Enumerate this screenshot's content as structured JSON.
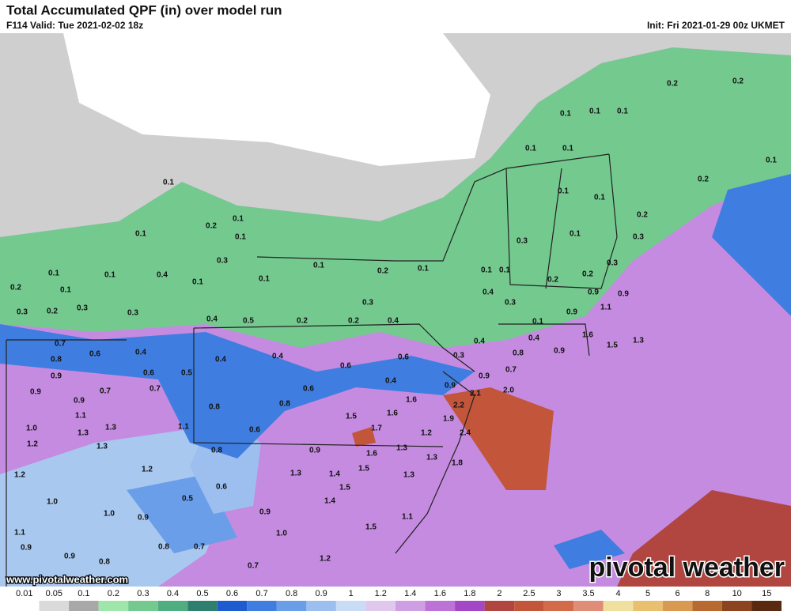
{
  "header": {
    "title": "Total Accumulated QPF (in) over model run",
    "valid": "F114 Valid: Tue 2021-02-02 18z",
    "init": "Init: Fri 2021-01-29 00z UKMET"
  },
  "map": {
    "labels": [
      "0.1",
      "0.2",
      "0.1",
      "0.1",
      "0.1",
      "0.3",
      "0.4",
      "0.1",
      "0.1",
      "0.1",
      "0.2",
      "0.1",
      "0.1",
      "0.1",
      "0.2",
      "0.1",
      "0.3",
      "0.3",
      "0.2",
      "0.3",
      "0.3",
      "0.4",
      "0.5",
      "0.2",
      "0.2",
      "0.4",
      "0.7",
      "0.6",
      "0.4",
      "0.8",
      "0.9",
      "0.4",
      "0.4",
      "0.6",
      "0.6",
      "0.6",
      "0.5",
      "0.9",
      "0.7",
      "0.7",
      "0.4",
      "0.6",
      "0.9",
      "1.1",
      "0.8",
      "0.8",
      "1.6",
      "1.5",
      "1.6",
      "1.0",
      "1.3",
      "1.3",
      "1.1",
      "0.6",
      "1.7",
      "1.2",
      "1.3",
      "0.8",
      "0.9",
      "1.6",
      "1.3",
      "1.2",
      "1.2",
      "1.2",
      "1.3",
      "1.4",
      "1.5",
      "1.3",
      "1.8",
      "1.3",
      "0.6",
      "0.5",
      "1.0",
      "1.4",
      "1.5",
      "1.0",
      "0.9",
      "0.9",
      "1.1",
      "1.1",
      "1.0",
      "1.5",
      "0.9",
      "0.8",
      "0.7",
      "0.9",
      "0.8",
      "1.2",
      "0.7",
      "0.1",
      "0.1",
      "0.1",
      "0.2",
      "0.2",
      "0.1",
      "0.1",
      "0.1",
      "0.1",
      "0.1",
      "0.2",
      "0.2",
      "0.1",
      "0.3",
      "0.3",
      "0.1",
      "0.1",
      "0.3",
      "0.2",
      "0.2",
      "0.4",
      "0.3",
      "0.9",
      "0.9",
      "1.1",
      "0.9",
      "0.1",
      "0.4",
      "0.4",
      "1.6",
      "1.5",
      "1.3",
      "0.8",
      "0.9",
      "0.3",
      "0.9",
      "0.7",
      "0.9",
      "2.1",
      "2.0",
      "2.2",
      "2.4",
      "1.9"
    ]
  },
  "colorbar": {
    "labels": [
      "0.01",
      "0.05",
      "0.1",
      "0.2",
      "0.3",
      "0.4",
      "0.5",
      "0.6",
      "0.7",
      "0.8",
      "0.9",
      "1",
      "1.2",
      "1.4",
      "1.6",
      "1.8",
      "2",
      "2.5",
      "3",
      "3.5",
      "4",
      "5",
      "6",
      "8",
      "10",
      "15"
    ],
    "colors": [
      "#ffffff",
      "#dadada",
      "#a8a8a8",
      "#9ee6aa",
      "#74c98f",
      "#4fae80",
      "#2f7f6e",
      "#1d5bd0",
      "#3f7ee0",
      "#6b9ee8",
      "#9dbfef",
      "#c8dcf5",
      "#e0c8ec",
      "#cf9fe4",
      "#bd72d8",
      "#a347c6",
      "#b0463f",
      "#c2553a",
      "#d36a4a",
      "#e08d78",
      "#f0e0a0",
      "#e8c070",
      "#d89a50",
      "#b86a30",
      "#8c4420",
      "#5a2a10"
    ]
  },
  "website": "www.pivotalweather.com",
  "watermark": "pivotal weather"
}
